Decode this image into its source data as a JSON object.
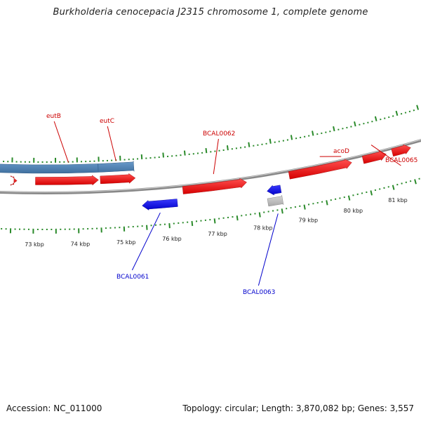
{
  "title": "Burkholderia cenocepacia J2315 chromosome 1, complete genome",
  "footer": {
    "accession": "Accession: NC_011000",
    "summary": "Topology: circular; Length: 3,870,082 bp; Genes: 3,557"
  },
  "colors": {
    "forward_gene": "#ff0000",
    "reverse_gene": "#0000ee",
    "feature_steelblue": "#4a7fb0",
    "rna_gray": "#bbbbbb",
    "tick_green": "#2a8a2a",
    "backbone": "#888888",
    "forward_label": "#cc0000",
    "reverse_label": "#0000cc"
  },
  "genes": [
    {
      "id": "g-left-fwd",
      "label": "",
      "strand": "forward",
      "start_kbp": 72.55,
      "end_kbp": 72.62,
      "track": "forward"
    },
    {
      "id": "g-eutB",
      "label": "eutB",
      "strand": "forward",
      "start_kbp": 73.04,
      "end_kbp": 74.48,
      "track": "forward"
    },
    {
      "id": "g-eutC",
      "label": "eutC",
      "strand": "forward",
      "start_kbp": 74.52,
      "end_kbp": 75.32,
      "track": "forward"
    },
    {
      "id": "g-BCAL0062",
      "label": "BCAL0062",
      "strand": "forward",
      "start_kbp": 76.37,
      "end_kbp": 77.82,
      "track": "inner"
    },
    {
      "id": "g-acoD",
      "label": "acoD",
      "strand": "forward",
      "start_kbp": 78.79,
      "end_kbp": 80.23,
      "track": "inner"
    },
    {
      "id": "g-BCAL0065",
      "label": "BCAL0065",
      "strand": "forward",
      "start_kbp": 80.49,
      "end_kbp": 81.03,
      "track": "inner"
    },
    {
      "id": "g-right-fwd",
      "label": "",
      "strand": "forward",
      "start_kbp": 81.17,
      "end_kbp": 81.6,
      "track": "inner"
    },
    {
      "id": "g-BCAL0061",
      "label": "BCAL0061",
      "strand": "reverse",
      "start_kbp": 75.43,
      "end_kbp": 76.22,
      "track": "reverse"
    },
    {
      "id": "g-BCAL0063",
      "label": "BCAL0063",
      "strand": "reverse",
      "start_kbp": 78.24,
      "end_kbp": 78.55,
      "track": "reverse"
    }
  ],
  "features": [
    {
      "id": "f-steelblue",
      "label": "",
      "type": "feature",
      "start_kbp": 72.2,
      "end_kbp": 75.3
    },
    {
      "id": "f-gray",
      "label": "",
      "type": "rna",
      "start_kbp": 78.22,
      "end_kbp": 78.55
    }
  ],
  "kbp_ticks": [
    "73 kbp",
    "74 kbp",
    "75 kbp",
    "76 kbp",
    "77 kbp",
    "78 kbp",
    "79 kbp",
    "80 kbp",
    "81 kbp"
  ],
  "kbp_tick_values": [
    73,
    74,
    75,
    76,
    77,
    78,
    79,
    80,
    81
  ]
}
